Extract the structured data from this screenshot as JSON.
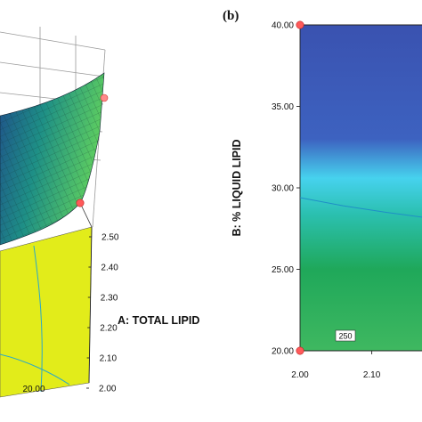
{
  "figure": {
    "panel_b_label": "(b)"
  },
  "chart_data": [
    {
      "type": "surface",
      "panel": "a",
      "xlabel": "A: TOTAL LIPID",
      "x_ticks": [
        "2.00",
        "2.10",
        "2.20",
        "2.30",
        "2.40",
        "2.50"
      ],
      "y_visible_tick": "20.00",
      "colors": {
        "surface_dark": "#1f4f8a",
        "surface_mid": "#1e8f86",
        "surface_light": "#5fcf5f",
        "floor": "#e2ec1a",
        "contour": "#2aa8c8",
        "design_point": "#ff5a5a"
      }
    },
    {
      "type": "contour",
      "panel": "b",
      "xlabel": "",
      "ylabel": "B: % LIQUID LIPID",
      "x_ticks": [
        "2.00",
        "2.10"
      ],
      "y_ticks": [
        "20.00",
        "25.00",
        "30.00",
        "35.00",
        "40.00"
      ],
      "xlim_visible": [
        2.0,
        2.17
      ],
      "ylim": [
        20.0,
        40.0
      ],
      "contour_label": "250",
      "design_points": [
        {
          "x": 2.0,
          "y": 40.0
        },
        {
          "x": 2.0,
          "y": 20.0
        }
      ],
      "contour_line": [
        {
          "x": 2.0,
          "y": 29.4
        },
        {
          "x": 2.06,
          "y": 28.9
        },
        {
          "x": 2.12,
          "y": 28.5
        },
        {
          "x": 2.17,
          "y": 28.2
        }
      ],
      "colors": {
        "top": "#3a52b0",
        "band": "#46d2ee",
        "bottom": "#1fa85a",
        "contour": "#1f8fc6",
        "design_point": "#ff5a5a"
      }
    }
  ]
}
